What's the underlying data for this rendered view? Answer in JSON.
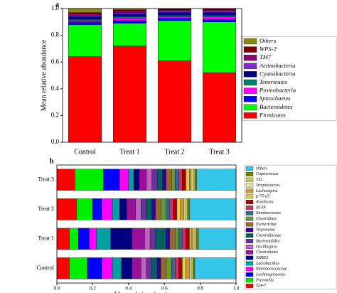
{
  "chart_data": [
    {
      "type": "bar",
      "orientation": "vertical",
      "stacked": true,
      "panel_label": "a",
      "ylabel": "Mean relative abundance",
      "categories": [
        "Control",
        "Treat 1",
        "Treat 2",
        "Treat 3"
      ],
      "ylim": [
        0,
        1
      ],
      "yticks": [
        {
          "value": 0,
          "label": "0.0"
        },
        0.2,
        0.4,
        0.6,
        0.8,
        {
          "value": 1,
          "label": "1.0"
        }
      ],
      "series": [
        {
          "name": "Firmicutes",
          "color": "#ff0000",
          "values": [
            0.64,
            0.72,
            0.61,
            0.52
          ]
        },
        {
          "name": "Bacteroidetes",
          "color": "#00ff00",
          "values": [
            0.24,
            0.17,
            0.3,
            0.38
          ]
        },
        {
          "name": "Spirochaetes",
          "color": "#0000ff",
          "values": [
            0.02,
            0.02,
            0.02,
            0.02
          ]
        },
        {
          "name": "Proteobacteria",
          "color": "#ff00ff",
          "values": [
            0.01,
            0.02,
            0.01,
            0.02
          ]
        },
        {
          "name": "Tenericutes",
          "color": "#00806e",
          "values": [
            0.01,
            0.01,
            0.01,
            0.01
          ]
        },
        {
          "name": "Cyanobacteria",
          "color": "#000080",
          "values": [
            0.02,
            0.02,
            0.02,
            0.02
          ]
        },
        {
          "name": "Actinobacteria",
          "color": "#7b2fd0",
          "values": [
            0.01,
            0.01,
            0.01,
            0.01
          ]
        },
        {
          "name": "TM7",
          "color": "#8b0a6e",
          "values": [
            0.01,
            0.01,
            0.01,
            0.01
          ]
        },
        {
          "name": "WPS-2",
          "color": "#800000",
          "values": [
            0.01,
            0.01,
            0.005,
            0.01
          ]
        },
        {
          "name": "Others",
          "color": "#8b8b1a",
          "values": [
            0.03,
            0.01,
            0.005,
            0.0
          ]
        }
      ]
    },
    {
      "type": "bar",
      "orientation": "horizontal",
      "stacked": true,
      "panel_label": "b",
      "xlabel": "Mean relative abundance",
      "categories": [
        "Control",
        "Treat 1",
        "Treat 2",
        "Treat 3"
      ],
      "xlim": [
        0,
        1
      ],
      "xticks": [
        {
          "value": 0,
          "label": "0.0"
        },
        0.2,
        0.4,
        0.6,
        0.8,
        {
          "value": 1,
          "label": "1.0"
        }
      ],
      "series": [
        {
          "name": "S24-7",
          "color": "#ff0000",
          "values": [
            0.07,
            0.07,
            0.11,
            0.1
          ]
        },
        {
          "name": "Prevotella",
          "color": "#00ee00",
          "values": [
            0.1,
            0.05,
            0.09,
            0.16
          ]
        },
        {
          "name": "Lachnospiraceae",
          "color": "#0000ff",
          "values": [
            0.08,
            0.06,
            0.05,
            0.09
          ]
        },
        {
          "name": "Ruminococcaceae",
          "color": "#ff00ff",
          "values": [
            0.06,
            0.04,
            0.06,
            0.05
          ]
        },
        {
          "name": "Lactobacillus",
          "color": "#00a0a0",
          "values": [
            0.05,
            0.08,
            0.04,
            0.03
          ]
        },
        {
          "name": "SMB53",
          "color": "#000080",
          "values": [
            0.06,
            0.12,
            0.04,
            0.03
          ]
        },
        {
          "name": "Clostridiales",
          "color": "#99109a",
          "values": [
            0.05,
            0.07,
            0.05,
            0.04
          ]
        },
        {
          "name": "Oscillospira",
          "color": "#c060c0",
          "values": [
            0.03,
            0.03,
            0.03,
            0.03
          ]
        },
        {
          "name": "Bacteroidales",
          "color": "#663399",
          "values": [
            0.03,
            0.03,
            0.03,
            0.03
          ]
        },
        {
          "name": "Clostridiaceae",
          "color": "#006060",
          "values": [
            0.03,
            0.06,
            0.03,
            0.03
          ]
        },
        {
          "name": "Treponema",
          "color": "#330099",
          "values": [
            0.02,
            0.02,
            0.02,
            0.02
          ]
        },
        {
          "name": "Escherichia",
          "color": "#996633",
          "values": [
            0.03,
            0.03,
            0.03,
            0.03
          ]
        },
        {
          "name": "Clostridium",
          "color": "#669933",
          "values": [
            0.03,
            0.02,
            0.03,
            0.02
          ]
        },
        {
          "name": "Ruminococcus",
          "color": "#336699",
          "values": [
            0.02,
            0.02,
            0.02,
            0.02
          ]
        },
        {
          "name": "RF39",
          "color": "#cc3366",
          "values": [
            0.02,
            0.02,
            0.02,
            0.02
          ]
        },
        {
          "name": "Roseburia",
          "color": "#aa0000",
          "values": [
            0.02,
            0.02,
            0.02,
            0.02
          ]
        },
        {
          "name": "p-75-a5",
          "color": "#ddcc55",
          "values": [
            0.02,
            0.01,
            0.02,
            0.02
          ]
        },
        {
          "name": "Lachnospira",
          "color": "#cc9933",
          "values": [
            0.02,
            0.01,
            0.02,
            0.01
          ]
        },
        {
          "name": "Streptococcus",
          "color": "#e0e0a0",
          "values": [
            0.01,
            0.01,
            0.01,
            0.01
          ]
        },
        {
          "name": "YS2",
          "color": "#c8c860",
          "values": [
            0.01,
            0.01,
            0.01,
            0.01
          ]
        },
        {
          "name": "Coprococcus",
          "color": "#668800",
          "values": [
            0.01,
            0.01,
            0.01,
            0.01
          ]
        },
        {
          "name": "Others",
          "color": "#33c6e8",
          "values": [
            0.23,
            0.21,
            0.26,
            0.22
          ]
        }
      ]
    }
  ]
}
